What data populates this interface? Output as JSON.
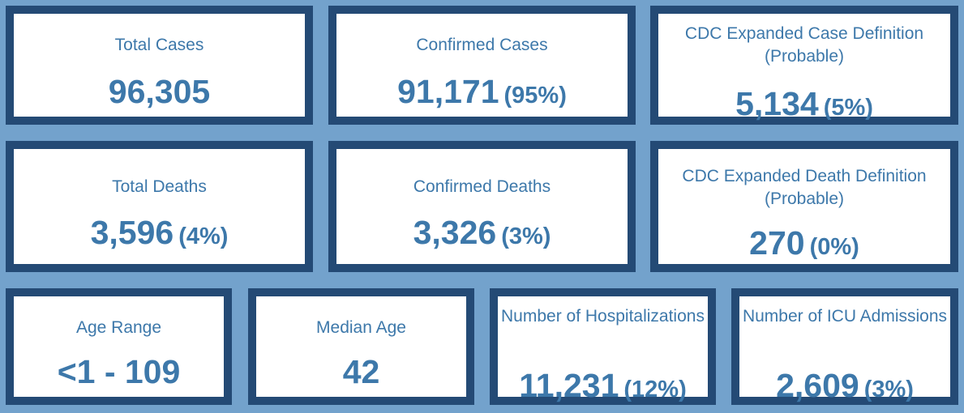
{
  "colors": {
    "background": "#73a2cc",
    "card_border": "#244a75",
    "card_fill": "#ffffff",
    "text": "#3d78aa"
  },
  "cards": [
    {
      "label": "Total Cases",
      "value": "96,305",
      "pct": ""
    },
    {
      "label": "Confirmed Cases",
      "value": "91,171",
      "pct": "(95%)"
    },
    {
      "label": "CDC Expanded Case Definition (Probable)",
      "value": "5,134",
      "pct": "(5%)"
    },
    {
      "label": "Total Deaths",
      "value": "3,596",
      "pct": "(4%)"
    },
    {
      "label": "Confirmed Deaths",
      "value": "3,326",
      "pct": "(3%)"
    },
    {
      "label": "CDC Expanded Death Definition (Probable)",
      "value": "270",
      "pct": "(0%)"
    },
    {
      "label": "Age Range",
      "value": "<1 - 109",
      "pct": ""
    },
    {
      "label": "Median Age",
      "value": "42",
      "pct": ""
    },
    {
      "label": "Number of Hospitalizations",
      "value": "11,231",
      "pct": "(12%)"
    },
    {
      "label": "Number of ICU Admissions",
      "value": "2,609",
      "pct": "(3%)"
    }
  ]
}
